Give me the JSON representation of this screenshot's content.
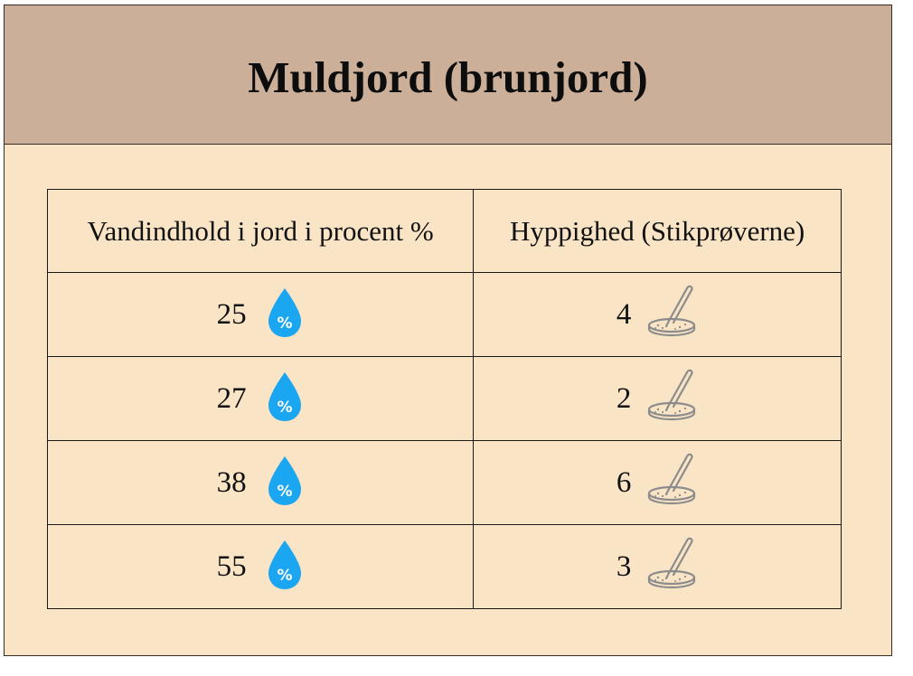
{
  "title": "Muldjord (brunjord)",
  "table": {
    "headers": [
      "Vandindhold i jord i procent %",
      "Hyppighed (Stikprøverne)"
    ],
    "rows": [
      {
        "water_percent": "25",
        "frequency": "4"
      },
      {
        "water_percent": "27",
        "frequency": "2"
      },
      {
        "water_percent": "38",
        "frequency": "6"
      },
      {
        "water_percent": "55",
        "frequency": "3"
      }
    ]
  },
  "icons": {
    "water": {
      "name": "water-drop-percent-icon",
      "color": "#1ba6f2",
      "glyph": "%"
    },
    "sample": {
      "name": "petri-dish-pipette-icon",
      "color": "#8c8c8c"
    }
  },
  "colors": {
    "background": "#f9e4c6",
    "header": "#cbaf98",
    "border": "#1a1a1a"
  }
}
